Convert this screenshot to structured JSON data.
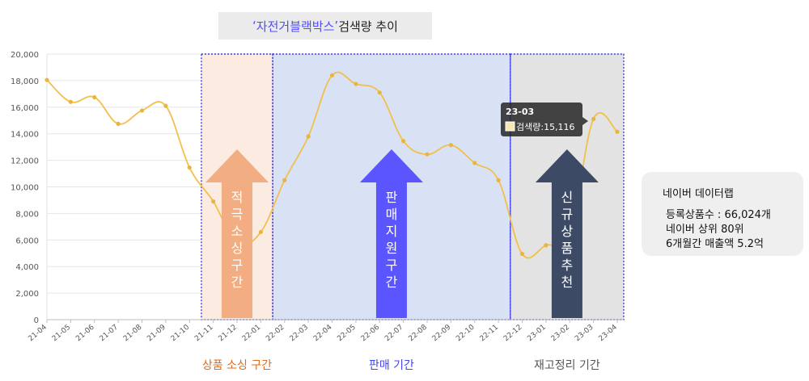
{
  "title": {
    "quote_open": "‘",
    "highlight": "자전거블랙박스",
    "quote_close": "’",
    "rest": " 검색량 추이"
  },
  "chart_data": {
    "type": "line",
    "categories": [
      "21-04",
      "21-05",
      "21-06",
      "21-07",
      "21-08",
      "21-09",
      "21-10",
      "21-11",
      "21-12",
      "22-01",
      "22-02",
      "22-03",
      "22-04",
      "22-05",
      "22-06",
      "22-07",
      "22-08",
      "22-09",
      "22-10",
      "22-11",
      "22-12",
      "23-01",
      "23-02",
      "23-03",
      "23-04"
    ],
    "values": [
      18050,
      16400,
      16750,
      14750,
      15750,
      16100,
      11450,
      8900,
      5800,
      6600,
      10500,
      13800,
      18400,
      17750,
      17100,
      13450,
      12450,
      13150,
      11800,
      10500,
      4950,
      5600,
      6400,
      15116,
      14150
    ],
    "ylim": [
      0,
      20000
    ],
    "yticks": [
      "0",
      "2,000",
      "4,000",
      "6,000",
      "8,000",
      "10,000",
      "12,000",
      "14,000",
      "16,000",
      "18,000",
      "20,000"
    ],
    "grid": true,
    "colors": {
      "line": "#f2c04a",
      "point": "#e8b63c"
    },
    "regions": [
      {
        "from": "21-11",
        "to": "22-01",
        "fill": "#fcebe1",
        "arrow_color": "#f2ae82",
        "arrow_text": [
          "적",
          "극",
          "소",
          "싱",
          "구",
          "간"
        ],
        "label": "상품 소싱 구간",
        "label_color": "#e06b1f"
      },
      {
        "from": "22-02",
        "to": "22-11",
        "fill": "#d9e2f4",
        "arrow_color": "#5a55ff",
        "arrow_text": [
          "판",
          "매",
          "지",
          "원",
          "구",
          "간"
        ],
        "label": "판매 기간",
        "label_color": "#4444ee"
      },
      {
        "from": "22-12",
        "to": "23-04",
        "fill": "#e3e3e3",
        "arrow_color": "#3d4a66",
        "arrow_text": [
          "신",
          "규",
          "상",
          "품",
          "추",
          "천"
        ],
        "label": "재고정리 기간",
        "label_color": "#555555"
      }
    ],
    "tooltip": {
      "category": "23-03",
      "series": "검색량",
      "separator": ":",
      "value": "15,116"
    }
  },
  "info": {
    "title": "네이버 데이터랩",
    "lines": [
      "등록상품수 : 66,024개",
      "네이버 상위 80위",
      "6개월간 매출액 5.2억"
    ]
  }
}
